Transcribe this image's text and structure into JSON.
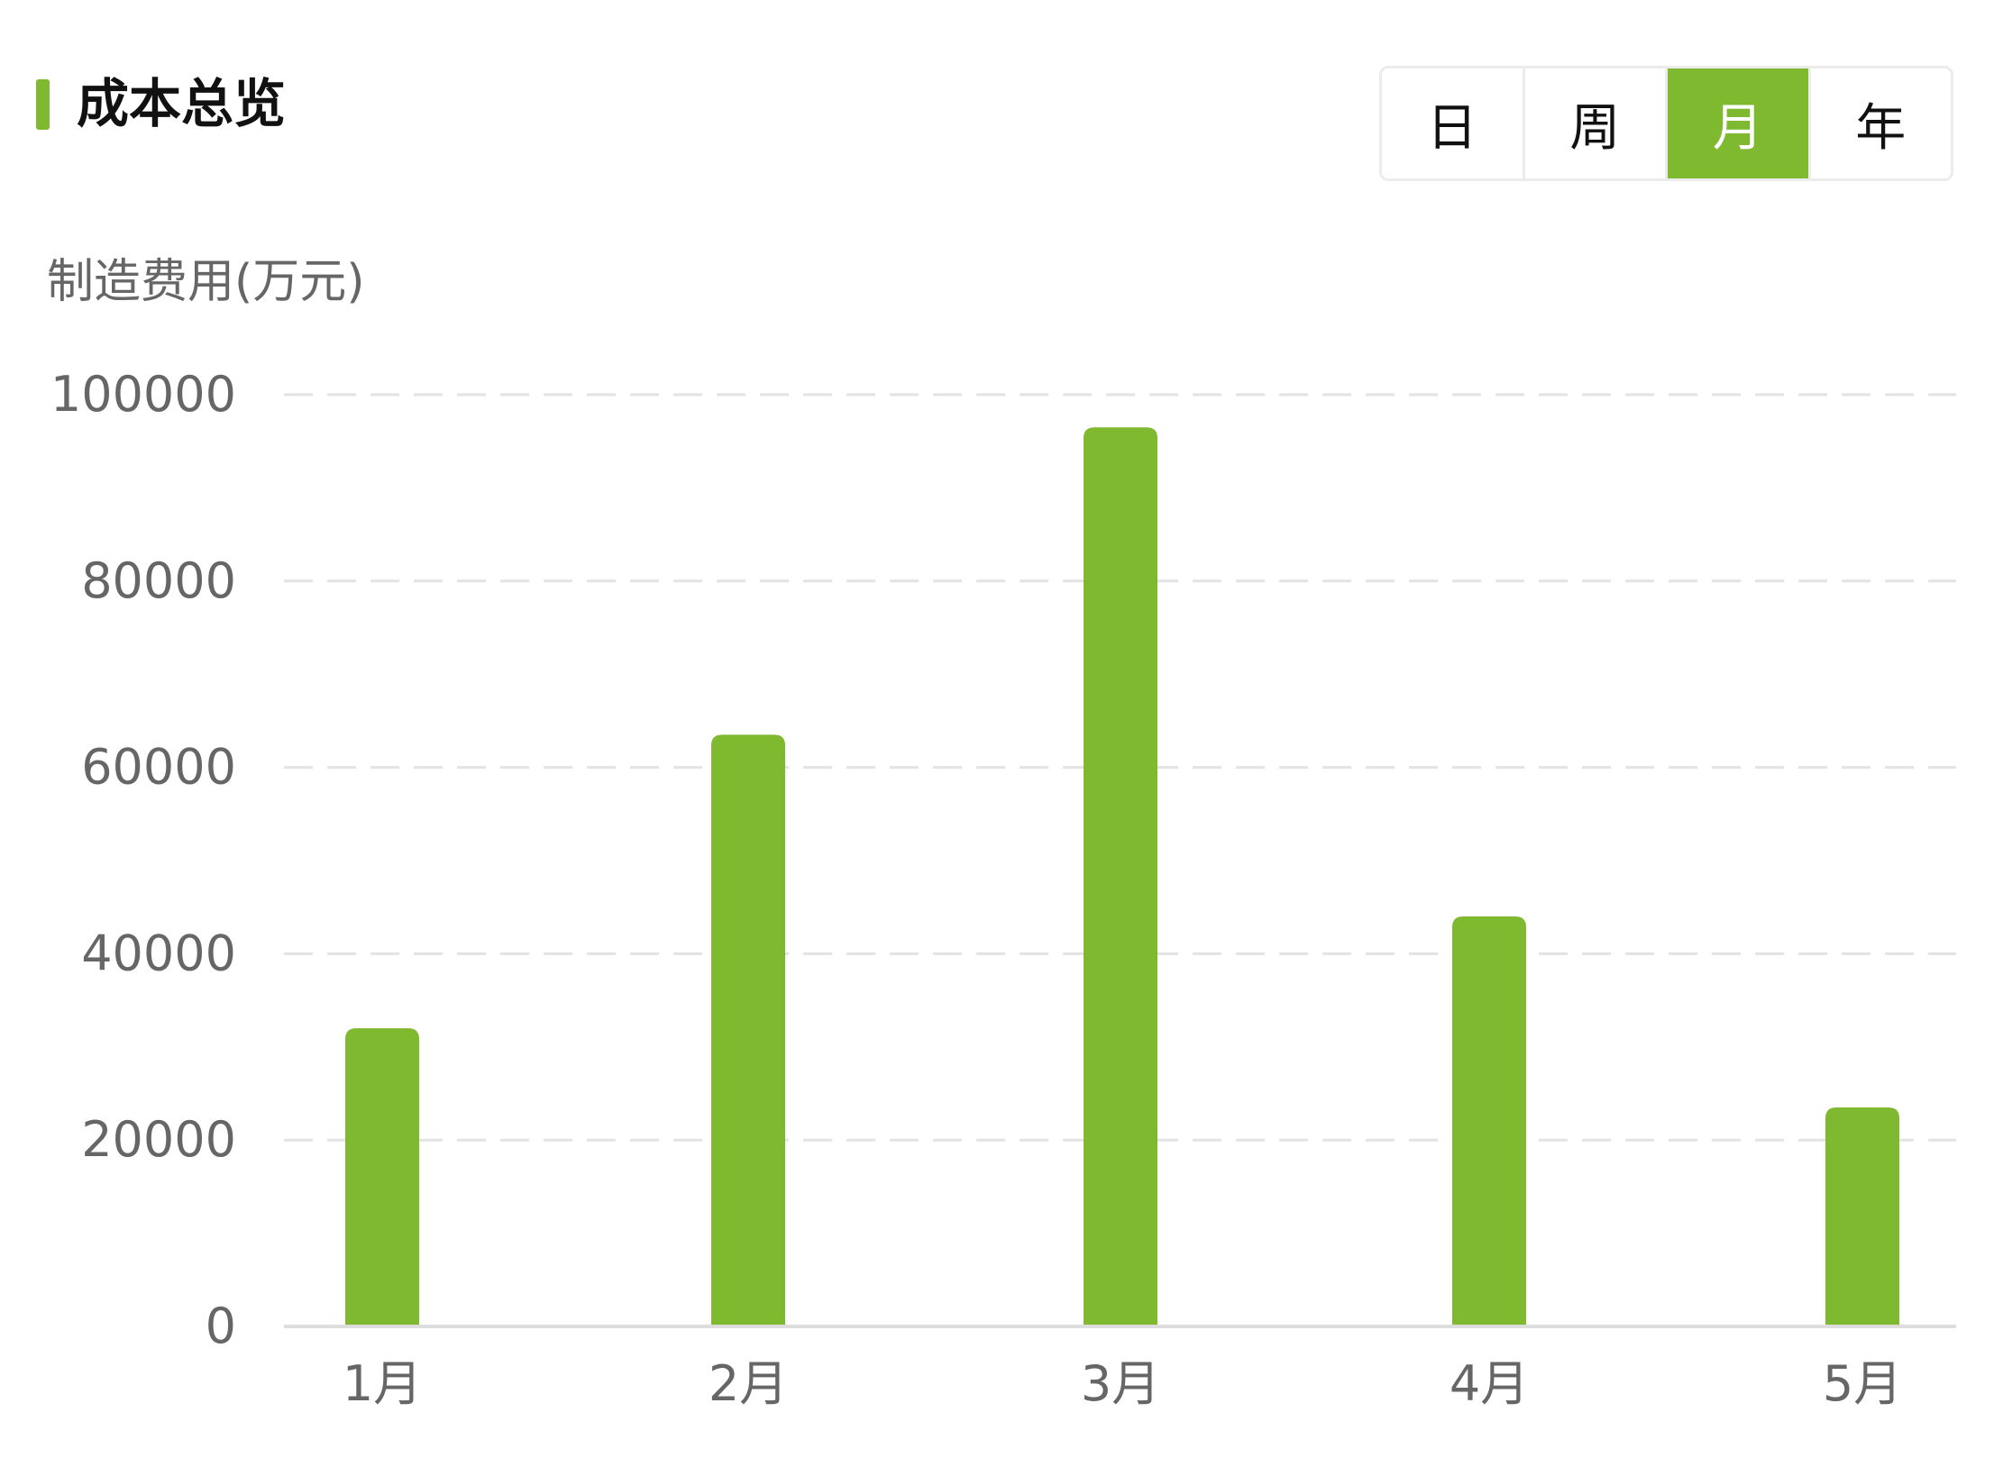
{
  "header": {
    "title": "成本总览",
    "accent_color": "#7fb92f",
    "periods": [
      {
        "label": "日",
        "active": false
      },
      {
        "label": "周",
        "active": false
      },
      {
        "label": "月",
        "active": true
      },
      {
        "label": "年",
        "active": false
      }
    ]
  },
  "chart_data": {
    "type": "bar",
    "title": "",
    "ylabel": "制造费用(万元)",
    "xlabel": "",
    "categories": [
      "1月",
      "2月",
      "3月",
      "4月",
      "5月"
    ],
    "values": [
      32000,
      63500,
      96500,
      44000,
      23500
    ],
    "ylim": [
      0,
      100000
    ],
    "yticks": [
      0,
      20000,
      40000,
      60000,
      80000,
      100000
    ],
    "ytick_labels": [
      "0",
      "20000",
      "40000",
      "60000",
      "80000",
      "100000"
    ],
    "grid": true,
    "bar_color": "#7fb92f",
    "grid_color": "#e3e3e3",
    "axis_color": "#dddddd",
    "label_color": "#666666"
  }
}
